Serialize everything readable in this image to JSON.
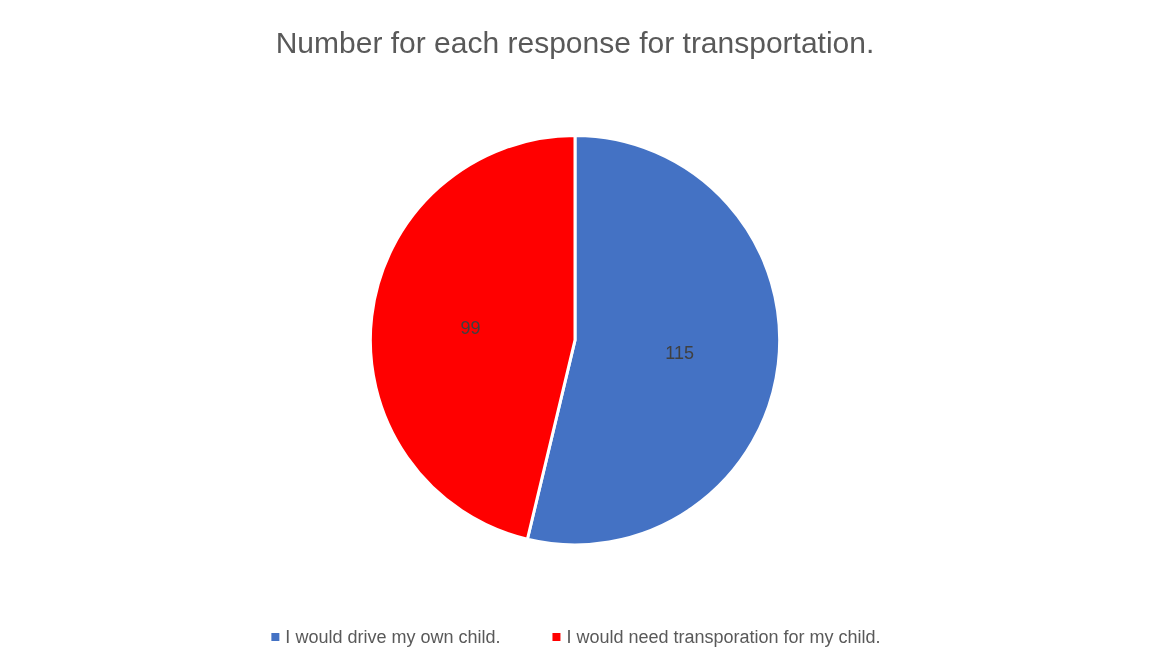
{
  "chart_data": {
    "type": "pie",
    "title": "Number for each response for transportation.",
    "categories": [
      "I would drive my own child.",
      "I would need transporation for my child."
    ],
    "values": [
      115,
      99
    ],
    "colors": [
      "#4472c4",
      "#ff0000"
    ],
    "data_labels": true,
    "legend": "bottom"
  }
}
